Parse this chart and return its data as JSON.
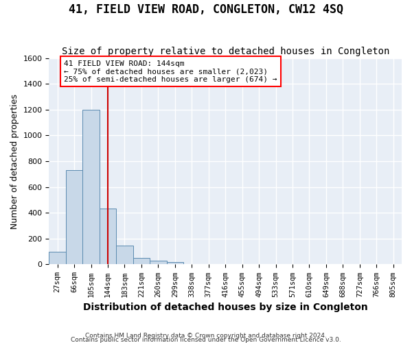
{
  "title": "41, FIELD VIEW ROAD, CONGLETON, CW12 4SQ",
  "subtitle": "Size of property relative to detached houses in Congleton",
  "xlabel": "Distribution of detached houses by size in Congleton",
  "ylabel": "Number of detached properties",
  "footnote1": "Contains HM Land Registry data © Crown copyright and database right 2024.",
  "footnote2": "Contains public sector information licensed under the Open Government Licence v3.0.",
  "bin_labels": [
    "27sqm",
    "66sqm",
    "105sqm",
    "144sqm",
    "183sqm",
    "221sqm",
    "260sqm",
    "299sqm",
    "338sqm",
    "377sqm",
    "416sqm",
    "455sqm",
    "494sqm",
    "533sqm",
    "571sqm",
    "610sqm",
    "649sqm",
    "688sqm",
    "727sqm",
    "766sqm",
    "805sqm"
  ],
  "bar_values": [
    100,
    730,
    1200,
    435,
    145,
    50,
    30,
    20,
    0,
    0,
    0,
    0,
    0,
    0,
    0,
    0,
    0,
    0,
    0,
    0,
    0
  ],
  "bar_color": "#c8d8e8",
  "bar_edge_color": "#5a8ab0",
  "red_line_bin": 3,
  "annotation_text": "41 FIELD VIEW ROAD: 144sqm\n← 75% of detached houses are smaller (2,023)\n25% of semi-detached houses are larger (674) →",
  "annotation_box_color": "white",
  "annotation_box_edge_color": "red",
  "red_line_color": "#cc0000",
  "ylim": [
    0,
    1600
  ],
  "yticks": [
    0,
    200,
    400,
    600,
    800,
    1000,
    1200,
    1400,
    1600
  ],
  "bg_color": "#e8eef6",
  "grid_color": "white",
  "title_fontsize": 12,
  "subtitle_fontsize": 10,
  "axis_label_fontsize": 9,
  "tick_fontsize": 7.5,
  "annotation_fontsize": 8
}
